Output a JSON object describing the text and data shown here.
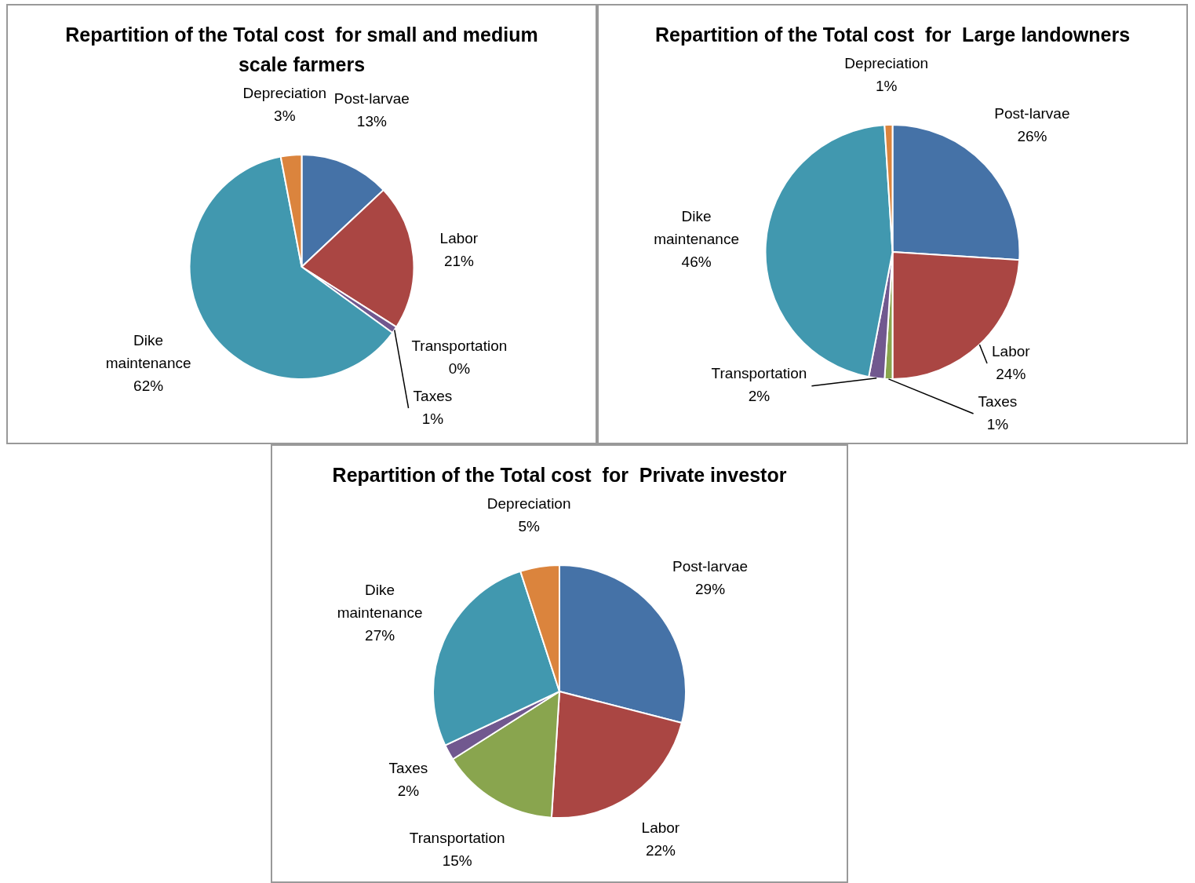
{
  "chart_data": [
    {
      "type": "pie",
      "title": "Repartition of the Total cost  for small and medium scale farmers",
      "categories": [
        "Post-larvae",
        "Labor",
        "Transportation",
        "Taxes",
        "Dike maintenance",
        "Depreciation"
      ],
      "values": [
        13,
        21,
        0,
        1,
        62,
        3
      ],
      "value_labels": [
        "13%",
        "21%",
        "0%",
        "1%",
        "62%",
        "3%"
      ],
      "colors": [
        "#4572a7",
        "#aa4643",
        "#89a54e",
        "#71588f",
        "#4198af",
        "#db843d"
      ],
      "legend": false
    },
    {
      "type": "pie",
      "title": "Repartition of the Total cost  for  Large landowners",
      "categories": [
        "Post-larvae",
        "Labor",
        "Taxes",
        "Transportation",
        "Dike maintenance",
        "Depreciation"
      ],
      "values": [
        26,
        24,
        1,
        2,
        46,
        1
      ],
      "value_labels": [
        "26%",
        "24%",
        "1%",
        "2%",
        "46%",
        "1%"
      ],
      "colors": [
        "#4572a7",
        "#aa4643",
        "#89a54e",
        "#71588f",
        "#4198af",
        "#db843d"
      ],
      "legend": false
    },
    {
      "type": "pie",
      "title": "Repartition of the Total cost  for  Private investor",
      "categories": [
        "Post-larvae",
        "Labor",
        "Transportation",
        "Taxes",
        "Dike maintenance",
        "Depreciation"
      ],
      "values": [
        29,
        22,
        15,
        2,
        27,
        5
      ],
      "value_labels": [
        "29%",
        "22%",
        "15%",
        "2%",
        "27%",
        "5%"
      ],
      "colors": [
        "#4572a7",
        "#aa4643",
        "#89a54e",
        "#71588f",
        "#4198af",
        "#db843d"
      ],
      "legend": false
    }
  ]
}
